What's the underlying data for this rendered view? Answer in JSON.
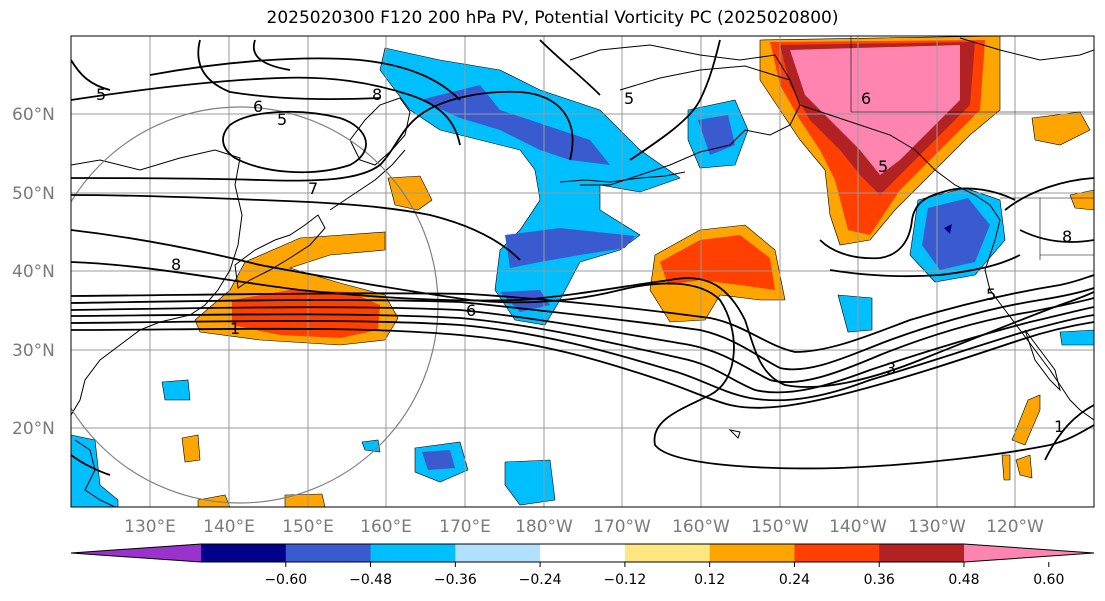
{
  "title": "2025020300 F120 200 hPa PV, Potential Vorticity PC (2025020800)",
  "latitude_labels": [
    "60°N",
    "50°N",
    "40°N",
    "30°N",
    "20°N"
  ],
  "longitude_labels": [
    "130°E",
    "140°E",
    "150°E",
    "160°E",
    "170°E",
    "180°W",
    "170°W",
    "160°W",
    "150°W",
    "140°W",
    "130°W",
    "120°W"
  ],
  "contour_labels": [
    "5",
    "6",
    "5",
    "8",
    "5",
    "7",
    "8",
    "6",
    "6",
    "5",
    "5",
    "3",
    "8",
    "1",
    "1"
  ],
  "colorbar": {
    "ticks": [
      "−0.60",
      "−0.48",
      "−0.36",
      "−0.24",
      "−0.12",
      "0.12",
      "0.24",
      "0.36",
      "0.48",
      "0.60"
    ],
    "colors": [
      "#9933cc",
      "#00008b",
      "#3a5bd0",
      "#00bfff",
      "#b0e2ff",
      "#ffffff",
      "#ffe680",
      "#ffa500",
      "#ff4000",
      "#b22222",
      "#ff85b0"
    ]
  }
}
